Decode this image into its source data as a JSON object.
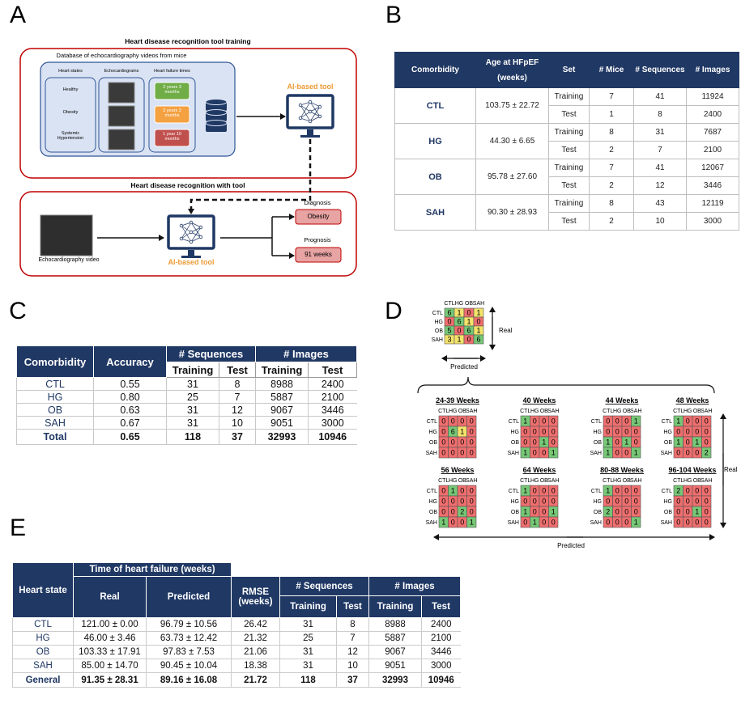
{
  "panel_labels": [
    "A",
    "B",
    "C",
    "D",
    "E"
  ],
  "panel_a": {
    "training_title": "Heart disease recognition tool training",
    "database_title": "Database of echocardiography videos from mice",
    "column_headers": [
      "Heart states",
      "Echocardiograms",
      "Heart failure times"
    ],
    "heart_states": [
      "Healthy",
      "Obesity",
      "Systemic Hypertension"
    ],
    "failure_times": [
      {
        "text": "2 years 3 months",
        "color": "#70ad47"
      },
      {
        "text": "2 years 2 months",
        "color": "#f4a142"
      },
      {
        "text": "1 year 10 months",
        "color": "#c0504d"
      }
    ],
    "ai_tool": "AI-based tool",
    "usage_title": "Heart disease recognition with tool",
    "video_label": "Echocardiography video",
    "diagnosis_label": "Diagnosis",
    "diagnosis": "Obesity",
    "prognosis_label": "Prognosis",
    "prognosis": "91 weeks"
  },
  "table_b": {
    "headers": [
      "Comorbidity",
      "Age at HFpEF (weeks)",
      "Set",
      "# Mice",
      "# Sequences",
      "# Images"
    ],
    "rows": [
      {
        "comorbidity": "CTL",
        "age": "103.75 ± 22.72",
        "sets": [
          [
            "Training",
            7,
            41,
            11924
          ],
          [
            "Test",
            1,
            8,
            2400
          ]
        ]
      },
      {
        "comorbidity": "HG",
        "age": "44.30 ± 6.65",
        "sets": [
          [
            "Training",
            8,
            31,
            7687
          ],
          [
            "Test",
            2,
            7,
            2100
          ]
        ]
      },
      {
        "comorbidity": "OB",
        "age": "95.78 ± 27.60",
        "sets": [
          [
            "Training",
            7,
            41,
            12067
          ],
          [
            "Test",
            2,
            12,
            3446
          ]
        ]
      },
      {
        "comorbidity": "SAH",
        "age": "90.30 ± 28.93",
        "sets": [
          [
            "Training",
            8,
            43,
            12119
          ],
          [
            "Test",
            2,
            10,
            3000
          ]
        ]
      }
    ]
  },
  "table_c": {
    "headers": [
      "Comorbidity",
      "Accuracy",
      "# Sequences",
      "# Images"
    ],
    "subheaders": [
      "Training",
      "Test",
      "Training",
      "Test"
    ],
    "rows": [
      [
        "CTL",
        "0.55",
        31,
        8,
        8988,
        2400
      ],
      [
        "HG",
        "0.80",
        25,
        7,
        5887,
        2100
      ],
      [
        "OB",
        "0.63",
        31,
        12,
        9067,
        3446
      ],
      [
        "SAH",
        "0.67",
        31,
        10,
        9051,
        3000
      ],
      [
        "Total",
        "0.65",
        118,
        37,
        32993,
        10946
      ]
    ]
  },
  "panel_d": {
    "labels": [
      "CTL",
      "HG",
      "OB",
      "SAH"
    ],
    "real": "Real",
    "predicted": "Predicted",
    "palette": {
      "g": "#76c776",
      "y": "#f3e36b",
      "r": "#ef6e6e"
    },
    "overall": {
      "values": [
        [
          6,
          1,
          0,
          1
        ],
        [
          0,
          6,
          1,
          0
        ],
        [
          5,
          0,
          6,
          1
        ],
        [
          3,
          1,
          0,
          6
        ]
      ],
      "shades": [
        "gyry",
        "rgyr",
        "grgy",
        "yyrg"
      ]
    },
    "matrices": [
      {
        "title": "24-39 Weeks",
        "values": [
          [
            0,
            0,
            0,
            0
          ],
          [
            0,
            6,
            1,
            0
          ],
          [
            0,
            0,
            0,
            0
          ],
          [
            0,
            0,
            0,
            0
          ]
        ],
        "shades": [
          "rrrr",
          "rgyr",
          "rrrr",
          "rrrr"
        ]
      },
      {
        "title": "40 Weeks",
        "values": [
          [
            1,
            0,
            0,
            0
          ],
          [
            0,
            0,
            0,
            0
          ],
          [
            0,
            0,
            1,
            0
          ],
          [
            1,
            0,
            0,
            1
          ]
        ],
        "shades": [
          "grrr",
          "rrrr",
          "rrgr",
          "grrg"
        ]
      },
      {
        "title": "44 Weeks",
        "values": [
          [
            0,
            0,
            0,
            1
          ],
          [
            0,
            0,
            0,
            0
          ],
          [
            1,
            0,
            1,
            0
          ],
          [
            1,
            0,
            0,
            1
          ]
        ],
        "shades": [
          "rrrg",
          "rrrr",
          "grgr",
          "grrg"
        ]
      },
      {
        "title": "48 Weeks",
        "values": [
          [
            1,
            0,
            0,
            0
          ],
          [
            0,
            0,
            0,
            0
          ],
          [
            1,
            0,
            1,
            0
          ],
          [
            0,
            0,
            0,
            2
          ]
        ],
        "shades": [
          "grrr",
          "rrrr",
          "grgr",
          "rrrg"
        ]
      },
      {
        "title": "56 Weeks",
        "values": [
          [
            0,
            1,
            0,
            0
          ],
          [
            0,
            0,
            0,
            0
          ],
          [
            0,
            0,
            2,
            0
          ],
          [
            1,
            0,
            0,
            1
          ]
        ],
        "shades": [
          "rgrr",
          "rrrr",
          "rrgr",
          "grrg"
        ]
      },
      {
        "title": "64 Weeks",
        "values": [
          [
            1,
            0,
            0,
            0
          ],
          [
            0,
            0,
            0,
            0
          ],
          [
            1,
            0,
            0,
            1
          ],
          [
            0,
            1,
            0,
            0
          ]
        ],
        "shades": [
          "grrr",
          "rrrr",
          "grrg",
          "rgrr"
        ]
      },
      {
        "title": "80-88 Weeks",
        "values": [
          [
            1,
            0,
            0,
            0
          ],
          [
            0,
            0,
            0,
            0
          ],
          [
            2,
            0,
            0,
            0
          ],
          [
            0,
            0,
            0,
            1
          ]
        ],
        "shades": [
          "grrr",
          "rrrr",
          "grrr",
          "rrrg"
        ]
      },
      {
        "title": "96-104 Weeks",
        "values": [
          [
            2,
            0,
            0,
            0
          ],
          [
            0,
            0,
            0,
            0
          ],
          [
            0,
            0,
            1,
            0
          ],
          [
            0,
            0,
            0,
            0
          ]
        ],
        "shades": [
          "grrr",
          "rrrr",
          "rrgr",
          "rrrr"
        ]
      }
    ]
  },
  "table_e": {
    "heart_state": "Heart state",
    "time": "Time of heart failure (weeks)",
    "real": "Real",
    "predicted": "Predicted",
    "rmse": "RMSE (weeks)",
    "sequences": "# Sequences",
    "images": "# Images",
    "subheaders": [
      "Training",
      "Test",
      "Training",
      "Test"
    ],
    "rows": [
      [
        "CTL",
        "121.00 ± 0.00",
        "96.79 ± 10.56",
        26.42,
        31,
        8,
        8988,
        2400
      ],
      [
        "HG",
        "46.00 ± 3.46",
        "63.73 ± 12.42",
        21.32,
        25,
        7,
        5887,
        2100
      ],
      [
        "OB",
        "103.33 ± 17.91",
        "97.83 ± 7.53",
        21.06,
        31,
        12,
        9067,
        3446
      ],
      [
        "SAH",
        "85.00 ± 14.70",
        "90.45 ± 10.04",
        18.38,
        31,
        10,
        9051,
        3000
      ],
      [
        "General",
        "91.35 ± 28.31",
        "89.16 ± 16.08",
        21.72,
        118,
        37,
        32993,
        10946
      ]
    ]
  }
}
